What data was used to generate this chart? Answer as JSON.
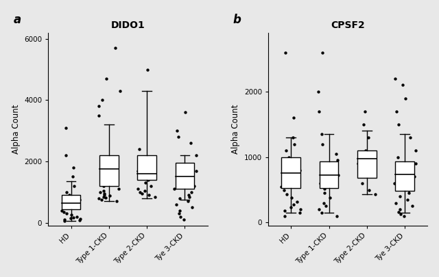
{
  "panel_a": {
    "title": "DIDO1",
    "ylabel": "Alpha Count",
    "ylim": [
      -100,
      6200
    ],
    "yticks": [
      0,
      2000,
      4000,
      6000
    ],
    "categories": [
      "HD",
      "Type 1-CKD",
      "Type 2-CKD",
      "Tye 3-CKD"
    ],
    "boxes": [
      {
        "q1": 450,
        "median": 650,
        "q3": 900,
        "whislo": 50,
        "whishi": 1350
      },
      {
        "q1": 1200,
        "median": 1750,
        "q3": 2200,
        "whislo": 700,
        "whishi": 3200
      },
      {
        "q1": 1400,
        "median": 1600,
        "q3": 2200,
        "whislo": 800,
        "whishi": 4300
      },
      {
        "q1": 1100,
        "median": 1500,
        "q3": 1950,
        "whislo": 750,
        "whishi": 2200
      }
    ],
    "scatter_points": [
      [
        50,
        80,
        100,
        130,
        150,
        180,
        200,
        250,
        300,
        350,
        400,
        500,
        600,
        700,
        750,
        800,
        900,
        1000,
        1200,
        1500,
        1800,
        2200,
        3100
      ],
      [
        700,
        750,
        800,
        820,
        850,
        880,
        900,
        950,
        1000,
        1050,
        1100,
        1200,
        1350,
        1500,
        1600,
        1800,
        2000,
        3500,
        3800,
        4000,
        4300,
        4700,
        5700
      ],
      [
        850,
        900,
        950,
        1000,
        1050,
        1100,
        1200,
        1300,
        1400,
        1500,
        1600,
        1700,
        1900,
        2100,
        2400,
        5000
      ],
      [
        100,
        200,
        300,
        400,
        500,
        600,
        700,
        800,
        850,
        900,
        1000,
        1100,
        1200,
        1350,
        1500,
        1700,
        1900,
        2200,
        2600,
        2800,
        3000,
        3600
      ]
    ]
  },
  "panel_b": {
    "title": "CPSF2",
    "ylabel": "Alpha Count",
    "ylim": [
      -50,
      2900
    ],
    "yticks": [
      0,
      1000,
      2000
    ],
    "categories": [
      "HD",
      "Type 1-CKD",
      "Type 2-CKD",
      "Tye 3-CKD"
    ],
    "boxes": [
      {
        "q1": 530,
        "median": 760,
        "q3": 1000,
        "whislo": 150,
        "whishi": 1300
      },
      {
        "q1": 530,
        "median": 730,
        "q3": 930,
        "whislo": 150,
        "whishi": 1350
      },
      {
        "q1": 680,
        "median": 980,
        "q3": 1100,
        "whislo": 430,
        "whishi": 1400
      },
      {
        "q1": 480,
        "median": 740,
        "q3": 930,
        "whislo": 150,
        "whishi": 1350
      }
    ],
    "scatter_points": [
      [
        100,
        150,
        180,
        200,
        230,
        280,
        320,
        380,
        430,
        500,
        550,
        600,
        700,
        750,
        800,
        900,
        1000,
        1100,
        1200,
        1300,
        1600,
        2600
      ],
      [
        100,
        150,
        200,
        250,
        300,
        380,
        450,
        520,
        600,
        660,
        720,
        780,
        850,
        950,
        1050,
        1200,
        1350,
        1700,
        2000,
        2600
      ],
      [
        430,
        500,
        600,
        700,
        800,
        900,
        1000,
        1100,
        1300,
        1500,
        1700
      ],
      [
        100,
        130,
        160,
        200,
        250,
        300,
        350,
        400,
        450,
        500,
        550,
        600,
        700,
        750,
        800,
        900,
        1000,
        1100,
        1300,
        1500,
        1700,
        1900,
        2100,
        2200
      ]
    ]
  },
  "bg_color": "#e8e8e8",
  "plot_bg_color": "#e8e8e8",
  "box_color": "white",
  "box_linecolor": "black",
  "scatter_color": "black",
  "scatter_size": 10,
  "label_a": "a",
  "label_b": "b"
}
